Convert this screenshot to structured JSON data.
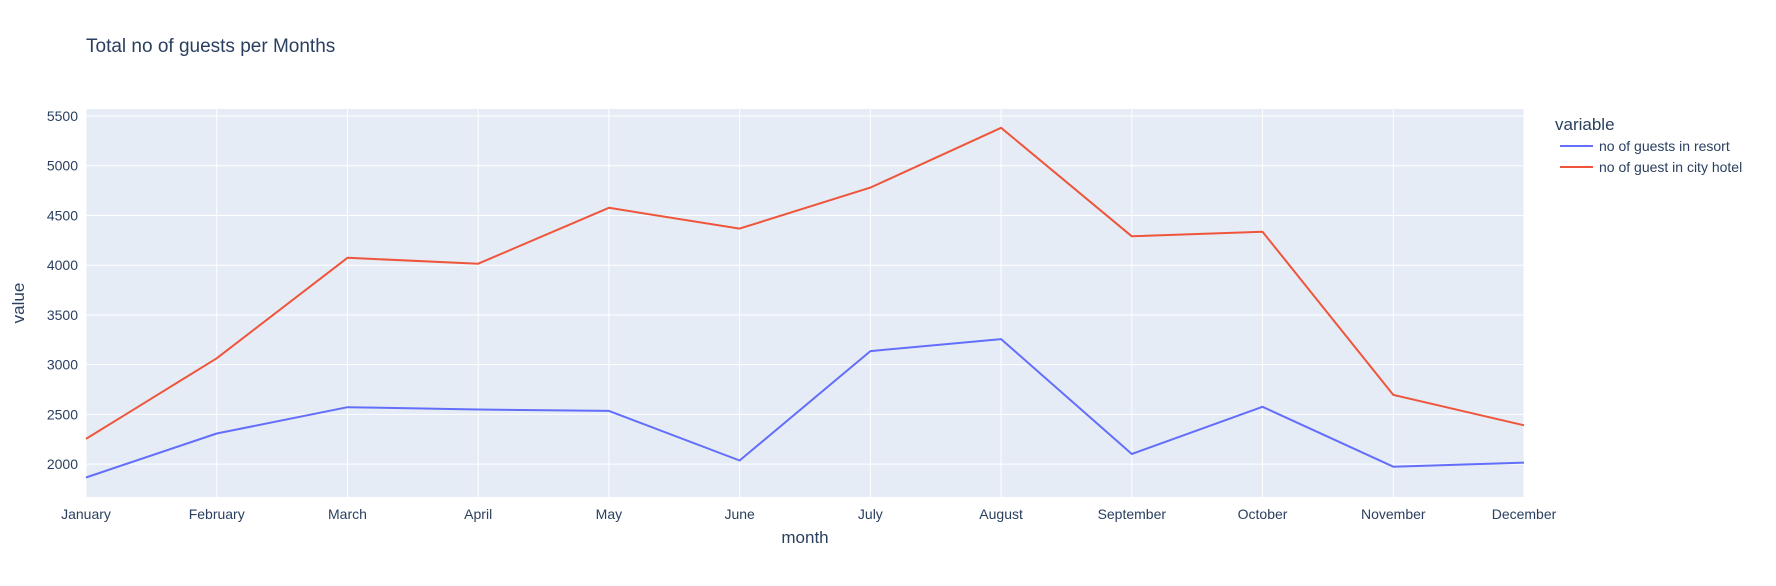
{
  "chart_data": {
    "type": "line",
    "title": "Total no of guests per Months",
    "xlabel": "month",
    "ylabel": "value",
    "categories": [
      "January",
      "February",
      "March",
      "April",
      "May",
      "June",
      "July",
      "August",
      "September",
      "October",
      "November",
      "December"
    ],
    "ylim": [
      1670,
      5570
    ],
    "yticks": [
      2000,
      2500,
      3000,
      3500,
      4000,
      4500,
      5000,
      5500
    ],
    "ytick_labels": [
      "2000",
      "2500",
      "3000",
      "3500",
      "4000",
      "4500",
      "5000",
      "5500"
    ],
    "grid": true,
    "legend_title": "variable",
    "legend_position": "right",
    "series": [
      {
        "name": "no of guests in resort",
        "color": "#636efa",
        "values": [
          1866,
          2308,
          2573,
          2550,
          2535,
          2037,
          3137,
          3257,
          2102,
          2577,
          1975,
          2016
        ]
      },
      {
        "name": "no of guest in city hotel",
        "color": "#ef553b",
        "values": [
          2254,
          3064,
          4074,
          4015,
          4577,
          4368,
          4780,
          5381,
          4290,
          4337,
          2696,
          2391
        ]
      }
    ]
  }
}
